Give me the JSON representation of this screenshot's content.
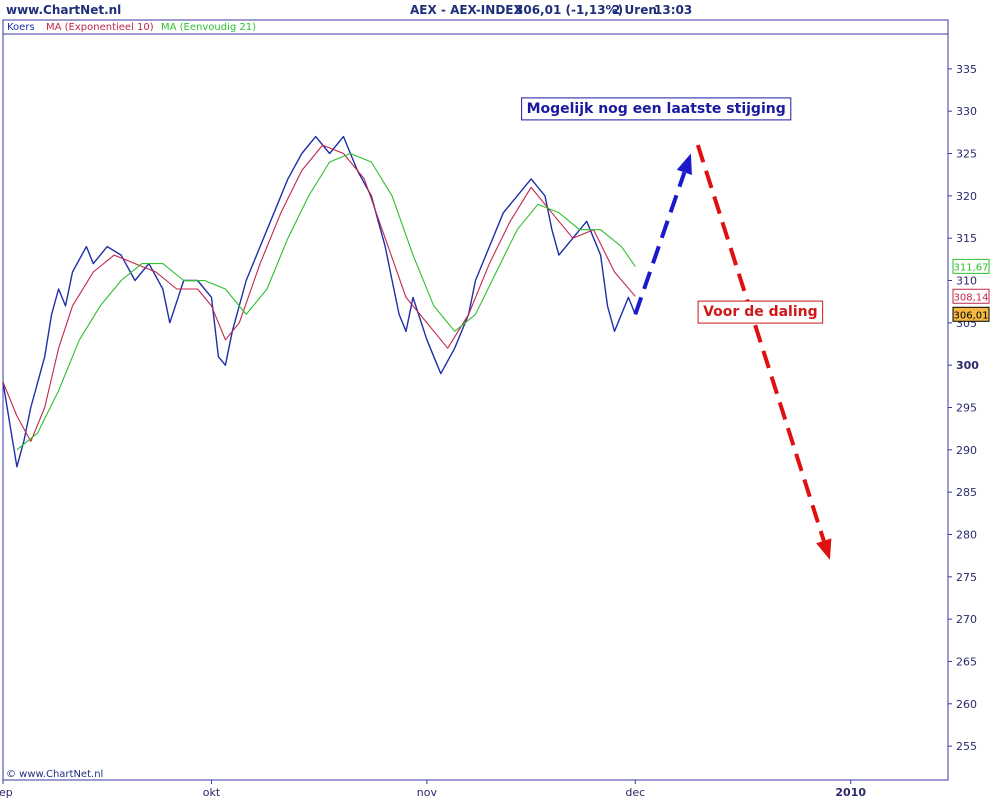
{
  "header": {
    "site": "www.ChartNet.nl",
    "instrument": "AEX - AEX-INDEX",
    "quote": "306,01 (-1,13%)",
    "interval": "2 Uren",
    "time": "13:03"
  },
  "legend": [
    {
      "label": "Koers",
      "color": "#1f2fa8"
    },
    {
      "label": "MA (Exponentieel 10)",
      "color": "#c0264a"
    },
    {
      "label": "MA (Eenvoudig 21)",
      "color": "#2fbf2f"
    }
  ],
  "copyright": "© www.ChartNet.nl",
  "chart_data": {
    "type": "line",
    "x_axis": {
      "range": [
        "2009-09-01",
        "2010-01-15"
      ],
      "ticks": [
        {
          "label": "sep",
          "date": "2009-09-01"
        },
        {
          "label": "okt",
          "date": "2009-10-01"
        },
        {
          "label": "nov",
          "date": "2009-11-01"
        },
        {
          "label": "dec",
          "date": "2009-12-01"
        },
        {
          "label": "2010",
          "date": "2010-01-01",
          "bold": true
        }
      ]
    },
    "y_axis": {
      "range": [
        251,
        339
      ],
      "ticks": [
        255,
        260,
        265,
        270,
        275,
        280,
        285,
        290,
        295,
        300,
        305,
        310,
        315,
        320,
        325,
        330,
        335
      ],
      "bold_tick": 300
    },
    "series": [
      {
        "name": "Koers",
        "color": "#1f2fa8",
        "points": [
          [
            "2009-09-01",
            298
          ],
          [
            "2009-09-02",
            293
          ],
          [
            "2009-09-03",
            288
          ],
          [
            "2009-09-04",
            291
          ],
          [
            "2009-09-05",
            295
          ],
          [
            "2009-09-07",
            301
          ],
          [
            "2009-09-08",
            306
          ],
          [
            "2009-09-09",
            309
          ],
          [
            "2009-09-10",
            307
          ],
          [
            "2009-09-11",
            311
          ],
          [
            "2009-09-13",
            314
          ],
          [
            "2009-09-14",
            312
          ],
          [
            "2009-09-16",
            314
          ],
          [
            "2009-09-18",
            313
          ],
          [
            "2009-09-20",
            310
          ],
          [
            "2009-09-22",
            312
          ],
          [
            "2009-09-24",
            309
          ],
          [
            "2009-09-25",
            305
          ],
          [
            "2009-09-27",
            310
          ],
          [
            "2009-09-29",
            310
          ],
          [
            "2009-10-01",
            308
          ],
          [
            "2009-10-02",
            301
          ],
          [
            "2009-10-03",
            300
          ],
          [
            "2009-10-04",
            304
          ],
          [
            "2009-10-06",
            310
          ],
          [
            "2009-10-08",
            314
          ],
          [
            "2009-10-10",
            318
          ],
          [
            "2009-10-12",
            322
          ],
          [
            "2009-10-14",
            325
          ],
          [
            "2009-10-16",
            327
          ],
          [
            "2009-10-18",
            325
          ],
          [
            "2009-10-20",
            327
          ],
          [
            "2009-10-22",
            323
          ],
          [
            "2009-10-24",
            320
          ],
          [
            "2009-10-26",
            314
          ],
          [
            "2009-10-27",
            310
          ],
          [
            "2009-10-28",
            306
          ],
          [
            "2009-10-29",
            304
          ],
          [
            "2009-10-30",
            308
          ],
          [
            "2009-11-01",
            303
          ],
          [
            "2009-11-02",
            301
          ],
          [
            "2009-11-03",
            299
          ],
          [
            "2009-11-05",
            302
          ],
          [
            "2009-11-07",
            306
          ],
          [
            "2009-11-08",
            310
          ],
          [
            "2009-11-10",
            314
          ],
          [
            "2009-11-12",
            318
          ],
          [
            "2009-11-14",
            320
          ],
          [
            "2009-11-16",
            322
          ],
          [
            "2009-11-18",
            320
          ],
          [
            "2009-11-19",
            316
          ],
          [
            "2009-11-20",
            313
          ],
          [
            "2009-11-22",
            315
          ],
          [
            "2009-11-24",
            317
          ],
          [
            "2009-11-26",
            313
          ],
          [
            "2009-11-27",
            307
          ],
          [
            "2009-11-28",
            304
          ],
          [
            "2009-11-30",
            308
          ],
          [
            "2009-12-01",
            306
          ]
        ]
      },
      {
        "name": "MA (Exponentieel 10)",
        "color": "#c0264a",
        "points": [
          [
            "2009-09-01",
            298
          ],
          [
            "2009-09-03",
            294
          ],
          [
            "2009-09-05",
            291
          ],
          [
            "2009-09-07",
            295
          ],
          [
            "2009-09-09",
            302
          ],
          [
            "2009-09-11",
            307
          ],
          [
            "2009-09-14",
            311
          ],
          [
            "2009-09-17",
            313
          ],
          [
            "2009-09-20",
            312
          ],
          [
            "2009-09-23",
            311
          ],
          [
            "2009-09-26",
            309
          ],
          [
            "2009-09-29",
            309
          ],
          [
            "2009-10-01",
            307
          ],
          [
            "2009-10-03",
            303
          ],
          [
            "2009-10-05",
            305
          ],
          [
            "2009-10-08",
            312
          ],
          [
            "2009-10-11",
            318
          ],
          [
            "2009-10-14",
            323
          ],
          [
            "2009-10-17",
            326
          ],
          [
            "2009-10-20",
            325
          ],
          [
            "2009-10-23",
            322
          ],
          [
            "2009-10-26",
            315
          ],
          [
            "2009-10-29",
            308
          ],
          [
            "2009-11-01",
            305
          ],
          [
            "2009-11-04",
            302
          ],
          [
            "2009-11-07",
            306
          ],
          [
            "2009-11-10",
            312
          ],
          [
            "2009-11-13",
            317
          ],
          [
            "2009-11-16",
            321
          ],
          [
            "2009-11-19",
            318
          ],
          [
            "2009-11-22",
            315
          ],
          [
            "2009-11-25",
            316
          ],
          [
            "2009-11-28",
            311
          ],
          [
            "2009-12-01",
            308.14
          ]
        ]
      },
      {
        "name": "MA (Eenvoudig 21)",
        "color": "#2fbf2f",
        "points": [
          [
            "2009-09-03",
            290
          ],
          [
            "2009-09-06",
            292
          ],
          [
            "2009-09-09",
            297
          ],
          [
            "2009-09-12",
            303
          ],
          [
            "2009-09-15",
            307
          ],
          [
            "2009-09-18",
            310
          ],
          [
            "2009-09-21",
            312
          ],
          [
            "2009-09-24",
            312
          ],
          [
            "2009-09-27",
            310
          ],
          [
            "2009-09-30",
            310
          ],
          [
            "2009-10-03",
            309
          ],
          [
            "2009-10-06",
            306
          ],
          [
            "2009-10-09",
            309
          ],
          [
            "2009-10-12",
            315
          ],
          [
            "2009-10-15",
            320
          ],
          [
            "2009-10-18",
            324
          ],
          [
            "2009-10-21",
            325
          ],
          [
            "2009-10-24",
            324
          ],
          [
            "2009-10-27",
            320
          ],
          [
            "2009-10-30",
            313
          ],
          [
            "2009-11-02",
            307
          ],
          [
            "2009-11-05",
            304
          ],
          [
            "2009-11-08",
            306
          ],
          [
            "2009-11-11",
            311
          ],
          [
            "2009-11-14",
            316
          ],
          [
            "2009-11-17",
            319
          ],
          [
            "2009-11-20",
            318
          ],
          [
            "2009-11-23",
            316
          ],
          [
            "2009-11-26",
            316
          ],
          [
            "2009-11-29",
            314
          ],
          [
            "2009-12-01",
            311.67
          ]
        ]
      }
    ],
    "price_labels": [
      {
        "value": "311,67",
        "y": 311.67,
        "color": "#2fbf2f",
        "fill": "#ffffff"
      },
      {
        "value": "308,14",
        "y": 308.14,
        "color": "#c0264a",
        "fill": "#ffffff"
      },
      {
        "value": "306,01",
        "y": 306.01,
        "color": "#000000",
        "fill": "#f5b942"
      }
    ],
    "annotations": [
      {
        "text": "Mogelijk nog een laatste stijging",
        "color": "#1a1aa0",
        "arrow": {
          "from": [
            "2009-12-01",
            306
          ],
          "to": [
            "2009-12-09",
            325
          ],
          "color": "#1a1acc"
        },
        "label_anchor": [
          "2009-12-04",
          329.8
        ]
      },
      {
        "text": "Voor de daling",
        "color": "#d01818",
        "arrow": {
          "from": [
            "2009-12-10",
            326
          ],
          "to": [
            "2009-12-29",
            277
          ],
          "color": "#e01010"
        },
        "label_anchor": [
          "2009-12-19",
          305.8
        ]
      }
    ]
  }
}
